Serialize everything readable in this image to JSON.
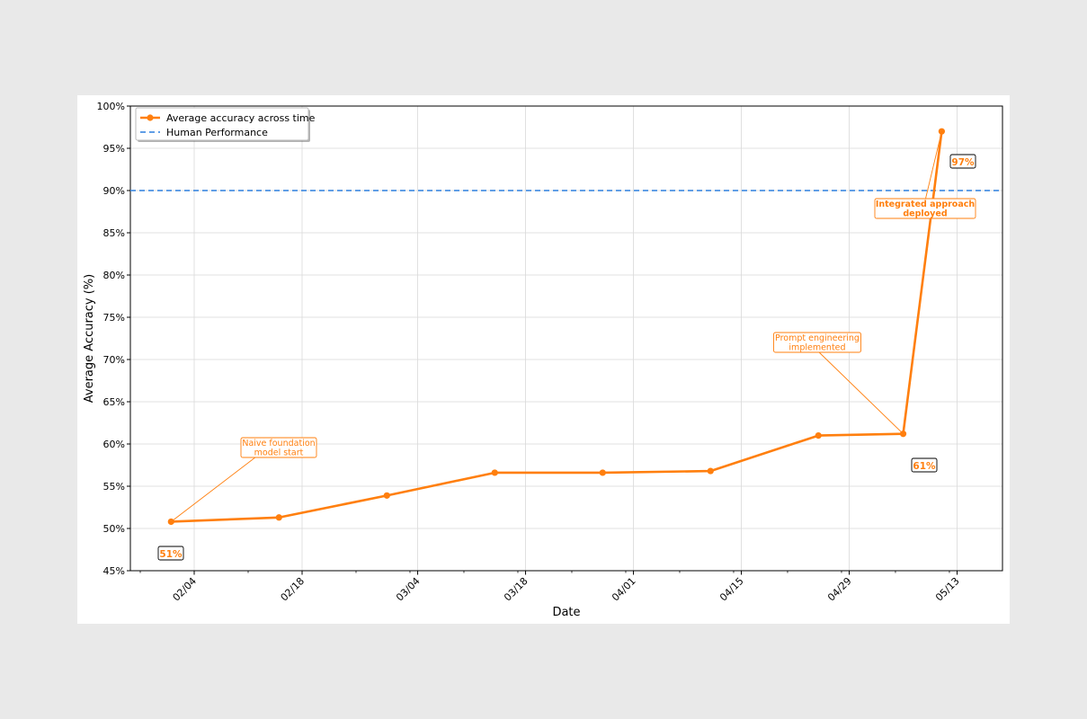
{
  "chart_data": {
    "type": "line",
    "xlabel": "Date",
    "ylabel": "Average Accuracy (%)",
    "x_axis_type": "date",
    "x_tick_labels": [
      "02/04",
      "02/18",
      "03/04",
      "03/18",
      "04/01",
      "04/15",
      "04/29",
      "05/13"
    ],
    "ylim": [
      45,
      100
    ],
    "y_ticks": [
      45,
      50,
      55,
      60,
      65,
      70,
      75,
      80,
      85,
      90,
      95,
      100
    ],
    "y_tick_suffix": "%",
    "grid": true,
    "legend_position": "top-left",
    "series": [
      {
        "name": "Average accuracy across time",
        "color": "#ff7f0e",
        "x": [
          "02/01",
          "02/15",
          "02/29",
          "03/14",
          "03/28",
          "04/11",
          "04/25",
          "05/06",
          "05/11"
        ],
        "values": [
          50.8,
          51.3,
          53.9,
          56.6,
          56.6,
          56.8,
          61.0,
          61.2,
          97.0
        ]
      }
    ],
    "reference_lines": [
      {
        "name": "Human Performance",
        "value": 90,
        "color": "#4a90e2",
        "style": "dashed"
      }
    ],
    "annotations": [
      {
        "text_lines": [
          "Naive foundation",
          "model start"
        ],
        "point_index": 0
      },
      {
        "text_lines": [
          "Prompt engineering",
          "implemented"
        ],
        "point_index": 7
      },
      {
        "text_lines": [
          "Integrated approach",
          "deployed"
        ],
        "point_index": 8,
        "bold": true
      }
    ],
    "value_labels": [
      {
        "text": "51%",
        "point_index": 0
      },
      {
        "text": "61%",
        "point_index": 7
      },
      {
        "text": "97%",
        "point_index": 8
      }
    ]
  }
}
